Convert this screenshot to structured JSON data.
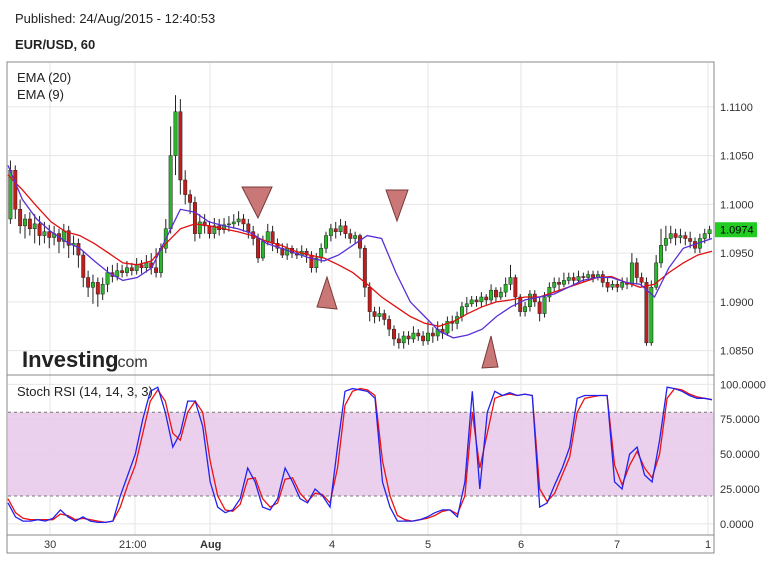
{
  "header": {
    "published": "Published: 24/Aug/2015 - 12:40:53",
    "symbol": "EUR/USD, 60"
  },
  "price_panel": {
    "legend": [
      "EMA (20)",
      "EMA (9)"
    ],
    "y_ticks": [
      "1.1100",
      "1.1050",
      "1.1000",
      "1.0950",
      "1.0900",
      "1.0850"
    ],
    "last_price": "1.0974",
    "watermark_bold": "Investing",
    "watermark_suffix": ".com"
  },
  "stoch_panel": {
    "title": "Stoch RSI (14, 14, 3, 3)",
    "y_ticks": [
      "100.0000",
      "75.0000",
      "50.0000",
      "25.0000",
      "0.0000"
    ]
  },
  "x_ticks": [
    "30",
    "21:00",
    "Aug",
    "4",
    "5",
    "6",
    "7",
    "1"
  ],
  "colors": {
    "bull": "#2bb52b",
    "bear": "#c21d1d",
    "ema20": "#e01010",
    "ema9": "#5b2fd6",
    "stoch_k": "#2222ee",
    "stoch_d": "#ee1111",
    "band_fill": "#e8c8ea",
    "triangle_fill": "#c97777",
    "badge": "#22cc22"
  },
  "chart_data": [
    {
      "type": "candlestick",
      "title": "EUR/USD, 60",
      "ylim": [
        1.0825,
        1.1145
      ],
      "price_ticks": [
        1.11,
        1.105,
        1.1,
        1.095,
        1.09,
        1.085
      ],
      "last_price": 1.0974,
      "x_ticks": [
        "30",
        "21:00",
        "Aug",
        "4",
        "5",
        "6",
        "7",
        "1"
      ],
      "candles": [
        [
          1.0985,
          1.1035,
          1.1045,
          1.098
        ],
        [
          1.1035,
          1.0995,
          1.104,
          1.0985
        ],
        [
          1.0995,
          1.0978,
          1.1005,
          1.097
        ],
        [
          1.0978,
          1.0985,
          1.099,
          1.0965
        ],
        [
          1.0985,
          1.0975,
          1.0992,
          1.0968
        ],
        [
          1.0975,
          1.098,
          1.099,
          1.096
        ],
        [
          1.098,
          1.0968,
          1.0988,
          1.0958
        ],
        [
          1.0968,
          1.0972,
          1.0982,
          1.096
        ],
        [
          1.0972,
          1.0966,
          1.0979,
          1.0955
        ],
        [
          1.0966,
          1.097,
          1.0978,
          1.0958
        ],
        [
          1.097,
          1.0962,
          1.0975,
          1.095
        ],
        [
          1.0962,
          1.0973,
          1.098,
          1.0955
        ],
        [
          1.0973,
          1.0958,
          1.0978,
          1.0945
        ],
        [
          1.0958,
          1.096,
          1.0968,
          1.0948
        ],
        [
          1.096,
          1.0948,
          1.0965,
          1.0935
        ],
        [
          1.0948,
          1.0925,
          1.0952,
          1.0915
        ],
        [
          1.0925,
          1.0915,
          1.0932,
          1.0905
        ],
        [
          1.0915,
          1.092,
          1.0928,
          1.0898
        ],
        [
          1.092,
          1.0908,
          1.0925,
          1.0895
        ],
        [
          1.0908,
          1.0918,
          1.0925,
          1.0902
        ],
        [
          1.0918,
          1.093,
          1.0936,
          1.091
        ],
        [
          1.093,
          1.0926,
          1.0938,
          1.092
        ],
        [
          1.0926,
          1.0932,
          1.094,
          1.0922
        ],
        [
          1.0932,
          1.093,
          1.0938,
          1.0925
        ],
        [
          1.093,
          1.0935,
          1.0942,
          1.0926
        ],
        [
          1.0935,
          1.0932,
          1.094,
          1.0927
        ],
        [
          1.0932,
          1.0938,
          1.0945,
          1.0928
        ],
        [
          1.0938,
          1.0935,
          1.0943,
          1.0929
        ],
        [
          1.0935,
          1.094,
          1.0948,
          1.093
        ],
        [
          1.094,
          1.0935,
          1.095,
          1.0928
        ],
        [
          1.0935,
          1.093,
          1.0955,
          1.0925
        ],
        [
          1.093,
          1.0955,
          1.096,
          1.0925
        ],
        [
          1.0955,
          1.0975,
          1.0985,
          1.095
        ],
        [
          1.0975,
          1.105,
          1.108,
          1.097
        ],
        [
          1.105,
          1.1095,
          1.1112,
          1.103
        ],
        [
          1.1095,
          1.1025,
          1.1108,
          1.101
        ],
        [
          1.1025,
          1.101,
          1.1035,
          1.1
        ],
        [
          1.101,
          1.1002,
          1.1015,
          1.099
        ],
        [
          1.1002,
          1.097,
          1.1008,
          1.0962
        ],
        [
          1.097,
          1.0982,
          1.099,
          1.0965
        ],
        [
          1.0982,
          1.0978,
          1.099,
          1.097
        ],
        [
          1.0978,
          1.097,
          1.0983,
          1.0965
        ],
        [
          1.097,
          1.0978,
          1.0986,
          1.0965
        ],
        [
          1.0978,
          1.0974,
          1.0985,
          1.0968
        ],
        [
          1.0974,
          1.0979,
          1.0986,
          1.097
        ],
        [
          1.0979,
          1.098,
          1.0988,
          1.0972
        ],
        [
          1.098,
          1.0982,
          1.099,
          1.0975
        ],
        [
          1.0982,
          1.0985,
          1.0993,
          1.0978
        ],
        [
          1.0985,
          1.098,
          1.099,
          1.0972
        ],
        [
          1.098,
          1.0972,
          1.0985,
          1.0965
        ],
        [
          1.0972,
          1.0965,
          1.0978,
          1.0958
        ],
        [
          1.0965,
          1.0945,
          1.097,
          1.094
        ],
        [
          1.0945,
          1.0962,
          1.0968,
          1.0942
        ],
        [
          1.0962,
          1.0972,
          1.098,
          1.0958
        ],
        [
          1.0972,
          1.096,
          1.0978,
          1.0952
        ],
        [
          1.096,
          1.0955,
          1.0965,
          1.095
        ],
        [
          1.0955,
          1.0948,
          1.096,
          1.0945
        ],
        [
          1.0948,
          1.0955,
          1.096,
          1.0943
        ],
        [
          1.0955,
          1.095,
          1.0958,
          1.0945
        ],
        [
          1.095,
          1.0948,
          1.0955,
          1.0944
        ],
        [
          1.0948,
          1.0952,
          1.0958,
          1.0945
        ],
        [
          1.0952,
          1.0948,
          1.0955,
          1.094
        ],
        [
          1.0948,
          1.0935,
          1.0952,
          1.093
        ],
        [
          1.0935,
          1.0945,
          1.095,
          1.093
        ],
        [
          1.0945,
          1.0955,
          1.096,
          1.094
        ],
        [
          1.0955,
          1.0968,
          1.0972,
          1.095
        ],
        [
          1.0968,
          1.0975,
          1.098,
          1.0962
        ],
        [
          1.0975,
          1.0972,
          1.0982,
          1.0965
        ],
        [
          1.0972,
          1.0978,
          1.0985,
          1.0968
        ],
        [
          1.0978,
          1.097,
          1.0983,
          1.0965
        ],
        [
          1.097,
          1.0965,
          1.0975,
          1.096
        ],
        [
          1.0965,
          1.0968,
          1.0972,
          1.096
        ],
        [
          1.0968,
          1.0955,
          1.097,
          1.0945
        ],
        [
          1.0955,
          1.0915,
          1.0958,
          1.0905
        ],
        [
          1.0915,
          1.089,
          1.092,
          1.088
        ],
        [
          1.089,
          1.0885,
          1.0895,
          1.0878
        ],
        [
          1.0885,
          1.0888,
          1.0895,
          1.088
        ],
        [
          1.0888,
          1.0882,
          1.0892,
          1.0876
        ],
        [
          1.0882,
          1.0872,
          1.0886,
          1.0865
        ],
        [
          1.0872,
          1.0862,
          1.0876,
          1.0855
        ],
        [
          1.0862,
          1.0858,
          1.0868,
          1.0852
        ],
        [
          1.0858,
          1.0865,
          1.087,
          1.0852
        ],
        [
          1.0865,
          1.0862,
          1.087,
          1.0856
        ],
        [
          1.0862,
          1.0868,
          1.0875,
          1.0858
        ],
        [
          1.0868,
          1.0865,
          1.0872,
          1.086
        ],
        [
          1.0865,
          1.086,
          1.087,
          1.0855
        ],
        [
          1.086,
          1.0868,
          1.088,
          1.0856
        ],
        [
          1.0868,
          1.0865,
          1.0874,
          1.0858
        ],
        [
          1.0865,
          1.0872,
          1.088,
          1.086
        ],
        [
          1.0872,
          1.0868,
          1.0878,
          1.0862
        ],
        [
          1.0868,
          1.088,
          1.0885,
          1.0865
        ],
        [
          1.088,
          1.0878,
          1.0886,
          1.087
        ],
        [
          1.0878,
          1.0885,
          1.089,
          1.0872
        ],
        [
          1.0885,
          1.0895,
          1.09,
          1.088
        ],
        [
          1.0895,
          1.0898,
          1.0905,
          1.0888
        ],
        [
          1.0898,
          1.0902,
          1.0906,
          1.0895
        ],
        [
          1.0902,
          1.09,
          1.0906,
          1.0895
        ],
        [
          1.09,
          1.0905,
          1.091,
          1.0895
        ],
        [
          1.0905,
          1.0902,
          1.0908,
          1.0897
        ],
        [
          1.0902,
          1.0912,
          1.0918,
          1.0898
        ],
        [
          1.0912,
          1.0905,
          1.0915,
          1.09
        ],
        [
          1.0905,
          1.091,
          1.0915,
          1.0902
        ],
        [
          1.091,
          1.0918,
          1.0925,
          1.0905
        ],
        [
          1.0918,
          1.0925,
          1.0938,
          1.0912
        ],
        [
          1.0925,
          1.0905,
          1.0928,
          1.0895
        ],
        [
          1.0905,
          1.089,
          1.0908,
          1.0885
        ],
        [
          1.089,
          1.0895,
          1.09,
          1.0885
        ],
        [
          1.0895,
          1.0908,
          1.0912,
          1.089
        ],
        [
          1.0908,
          1.09,
          1.0912,
          1.0895
        ],
        [
          1.09,
          1.0888,
          1.0905,
          1.088
        ],
        [
          1.0888,
          1.0905,
          1.091,
          1.0884
        ],
        [
          1.0905,
          1.0915,
          1.092,
          1.09
        ],
        [
          1.0915,
          1.092,
          1.0925,
          1.091
        ],
        [
          1.092,
          1.0918,
          1.0925,
          1.0912
        ],
        [
          1.0918,
          1.0922,
          1.093,
          1.0915
        ],
        [
          1.0922,
          1.0925,
          1.093,
          1.0918
        ],
        [
          1.0925,
          1.0922,
          1.093,
          1.0918
        ],
        [
          1.0922,
          1.0926,
          1.0932,
          1.0918
        ],
        [
          1.0926,
          1.0925,
          1.093,
          1.092
        ],
        [
          1.0925,
          1.0928,
          1.0932,
          1.0922
        ],
        [
          1.0928,
          1.0925,
          1.0932,
          1.092
        ],
        [
          1.0925,
          1.0928,
          1.0932,
          1.0922
        ],
        [
          1.0928,
          1.092,
          1.0932,
          1.0915
        ],
        [
          1.092,
          1.0915,
          1.0925,
          1.091
        ],
        [
          1.0915,
          1.0918,
          1.0922,
          1.0912
        ],
        [
          1.0918,
          1.0915,
          1.0922,
          1.091
        ],
        [
          1.0915,
          1.092,
          1.0925,
          1.0912
        ],
        [
          1.092,
          1.0918,
          1.0925,
          1.0913
        ],
        [
          1.0918,
          1.094,
          1.095,
          1.0915
        ],
        [
          1.094,
          1.0925,
          1.0945,
          1.0918
        ],
        [
          1.0925,
          1.092,
          1.093,
          1.0915
        ],
        [
          1.092,
          1.0858,
          1.0925,
          1.0855
        ],
        [
          1.0858,
          1.0915,
          1.0922,
          1.0855
        ],
        [
          1.0915,
          1.094,
          1.0948,
          1.0912
        ],
        [
          1.094,
          1.0958,
          1.0975,
          1.0935
        ],
        [
          1.0958,
          1.0965,
          1.0978,
          1.0952
        ],
        [
          1.0965,
          1.097,
          1.0978,
          1.096
        ],
        [
          1.097,
          1.0966,
          1.0975,
          1.0958
        ],
        [
          1.0966,
          1.0968,
          1.0975,
          1.096
        ],
        [
          1.0968,
          1.0965,
          1.0972,
          1.0958
        ],
        [
          1.0965,
          1.0962,
          1.0972,
          1.0955
        ],
        [
          1.0962,
          1.0955,
          1.0966,
          1.095
        ],
        [
          1.0955,
          1.0965,
          1.097,
          1.095
        ],
        [
          1.0965,
          1.097,
          1.0975,
          1.096
        ],
        [
          1.097,
          1.0974,
          1.0978,
          1.0965
        ]
      ],
      "ema20": [
        1.103,
        1.1015,
        1.0998,
        1.0982,
        1.0972,
        1.0968,
        1.096,
        1.095,
        1.094,
        1.0938,
        1.0942,
        1.096,
        1.0975,
        1.098,
        1.0978,
        1.0975,
        1.0972,
        1.0968,
        1.0962,
        1.0958,
        1.0952,
        1.0948,
        1.0945,
        1.0938,
        1.093,
        1.0918,
        1.0905,
        1.0895,
        1.0885,
        1.0878,
        1.0875,
        1.088,
        1.0888,
        1.0895,
        1.09,
        1.0902,
        1.0905,
        1.0905,
        1.091,
        1.0915,
        1.092,
        1.0925,
        1.0926,
        1.092,
        1.0915,
        1.0918,
        1.093,
        1.094,
        1.0948,
        1.0952
      ],
      "ema9": [
        1.104,
        1.1005,
        1.0985,
        1.0972,
        1.0962,
        1.0955,
        1.0942,
        1.093,
        1.0922,
        1.0925,
        1.0935,
        1.0965,
        1.0995,
        1.0992,
        1.0982,
        1.0978,
        1.0975,
        1.097,
        1.096,
        1.0955,
        1.095,
        1.0945,
        1.0942,
        1.0948,
        1.0958,
        1.0968,
        1.0965,
        1.093,
        1.09,
        1.0885,
        1.087,
        1.0863,
        1.0866,
        1.0872,
        1.0885,
        1.0895,
        1.0902,
        1.0905,
        1.0908,
        1.0915,
        1.0922,
        1.0925,
        1.0925,
        1.092,
        1.0918,
        1.0905,
        1.0935,
        1.0955,
        1.096,
        1.0965
      ]
    },
    {
      "type": "line",
      "title": "Stoch RSI (14, 14, 3, 3)",
      "ylim": [
        -8,
        106
      ],
      "y_ticks": [
        100,
        75,
        50,
        25,
        0
      ],
      "band": [
        20,
        80
      ],
      "series": [
        {
          "values": [
            15,
            5,
            2,
            2,
            3,
            2,
            4,
            10,
            5,
            2,
            5,
            2,
            1,
            1,
            2,
            20,
            35,
            50,
            75,
            95,
            98,
            80,
            55,
            65,
            88,
            88,
            70,
            30,
            12,
            8,
            10,
            18,
            40,
            30,
            12,
            10,
            18,
            40,
            30,
            18,
            15,
            25,
            20,
            12,
            55,
            95,
            97,
            96,
            95,
            90,
            30,
            12,
            2,
            2,
            2,
            3,
            5,
            8,
            10,
            10,
            5,
            30,
            95,
            25,
            80,
            95,
            92,
            94,
            92,
            93,
            92,
            12,
            15,
            28,
            40,
            55,
            90,
            92,
            92,
            92,
            92,
            30,
            25,
            50,
            55,
            35,
            30,
            60,
            98,
            97,
            95,
            92,
            90,
            90,
            89
          ]
        },
        {
          "values": [
            18,
            8,
            4,
            3,
            3,
            3,
            3,
            7,
            6,
            3,
            4,
            3,
            2,
            1,
            2,
            12,
            28,
            42,
            65,
            88,
            96,
            88,
            65,
            60,
            80,
            88,
            80,
            45,
            20,
            10,
            9,
            14,
            32,
            33,
            18,
            12,
            15,
            32,
            33,
            22,
            16,
            22,
            21,
            15,
            40,
            85,
            95,
            97,
            96,
            92,
            45,
            20,
            6,
            3,
            2,
            3,
            4,
            6,
            9,
            10,
            7,
            20,
            80,
            40,
            65,
            90,
            92,
            93,
            92,
            93,
            92,
            25,
            16,
            22,
            35,
            48,
            80,
            90,
            91,
            92,
            92,
            42,
            28,
            42,
            52,
            40,
            33,
            50,
            90,
            97,
            96,
            93,
            91,
            90,
            89
          ]
        }
      ]
    }
  ]
}
